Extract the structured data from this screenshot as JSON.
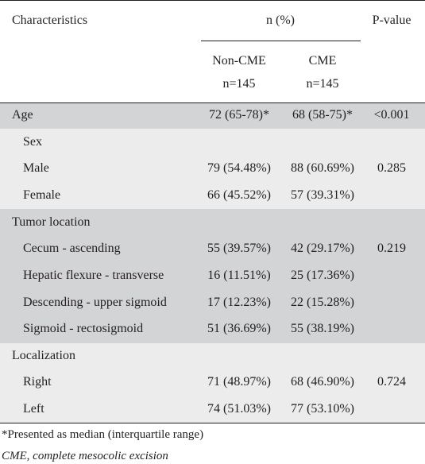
{
  "header": {
    "characteristics": "Characteristics",
    "n_percent": "n (%)",
    "p_value": "P-value",
    "group1_name": "Non-CME",
    "group1_n": "n=145",
    "group2_name": "CME",
    "group2_n": "n=145"
  },
  "rows": [
    {
      "label": "Age",
      "non_cme": "72 (65-78)*",
      "cme": "68 (58-75)*",
      "p": "<0.001"
    },
    {
      "label": "Sex",
      "non_cme": "",
      "cme": "",
      "p": ""
    },
    {
      "label": "Male",
      "non_cme": "79 (54.48%)",
      "cme": "88 (60.69%)",
      "p": "0.285"
    },
    {
      "label": "Female",
      "non_cme": "66 (45.52%)",
      "cme": "57 (39.31%)",
      "p": ""
    },
    {
      "label": "Tumor location",
      "non_cme": "",
      "cme": "",
      "p": ""
    },
    {
      "label": "Cecum - ascending",
      "non_cme": "55 (39.57%)",
      "cme": "42 (29.17%)",
      "p": "0.219"
    },
    {
      "label": "Hepatic flexure - transverse",
      "non_cme": "16 (11.51%)",
      "cme": "25 (17.36%)",
      "p": ""
    },
    {
      "label": "Descending - upper sigmoid",
      "non_cme": "17 (12.23%)",
      "cme": "22 (15.28%)",
      "p": ""
    },
    {
      "label": "Sigmoid - rectosigmoid",
      "non_cme": "51 (36.69%)",
      "cme": "55 (38.19%)",
      "p": ""
    },
    {
      "label": "Localization",
      "non_cme": "",
      "cme": "",
      "p": ""
    },
    {
      "label": "Right",
      "non_cme": "71 (48.97%)",
      "cme": "68 (46.90%)",
      "p": "0.724"
    },
    {
      "label": "Left",
      "non_cme": "74 (51.03%)",
      "cme": "77 (53.10%)",
      "p": ""
    }
  ],
  "footnotes": {
    "median_note": "*Presented as median (interquartile range)",
    "abbreviation": "CME, complete mesocolic excision"
  },
  "colors": {
    "band_dark": "#d3d4d5",
    "band_light": "#ececec",
    "text": "#231f20"
  }
}
